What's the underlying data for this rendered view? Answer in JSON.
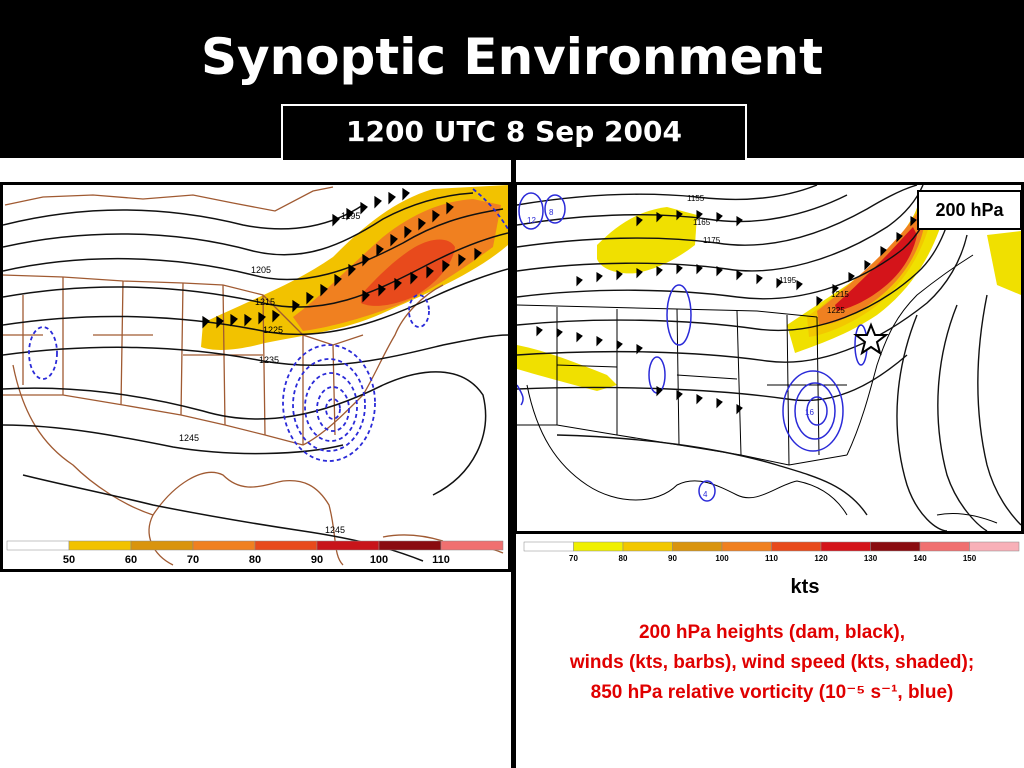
{
  "slide": {
    "title": "Synoptic Environment",
    "subtitle": "1200 UTC 8 Sep 2004"
  },
  "left_map": {
    "height_labels": [
      "1195",
      "1205",
      "1215",
      "1225",
      "1235",
      "1245",
      "1245"
    ],
    "colorbar": {
      "labels": [
        "50",
        "60",
        "70",
        "80",
        "90",
        "100",
        "110"
      ],
      "colors": [
        "#ffffff",
        "#f2c200",
        "#d9940e",
        "#f08020",
        "#e84a1c",
        "#c8141a",
        "#8a0c10",
        "#f07070"
      ]
    }
  },
  "right_map": {
    "level_label": "200 hPa",
    "height_labels": [
      "1155",
      "1165",
      "1175",
      "1195",
      "1215",
      "1225"
    ],
    "vorticity_labels": [
      "12",
      "8",
      "16",
      "4"
    ],
    "colorbar": {
      "labels": [
        "70",
        "80",
        "90",
        "100",
        "110",
        "120",
        "130",
        "140",
        "150"
      ],
      "colors": [
        "#ffffff",
        "#f0f000",
        "#f2c800",
        "#d9940e",
        "#f08020",
        "#e84a1c",
        "#d4141a",
        "#8a0c10",
        "#f07070",
        "#f8b0b8"
      ]
    },
    "units": "kts"
  },
  "caption": {
    "line1": "200 hPa heights (dam, black),",
    "line2": "winds (kts, barbs), wind speed (kts, shaded);",
    "line3": "850 hPa relative vorticity (10⁻⁵ s⁻¹, blue)"
  }
}
